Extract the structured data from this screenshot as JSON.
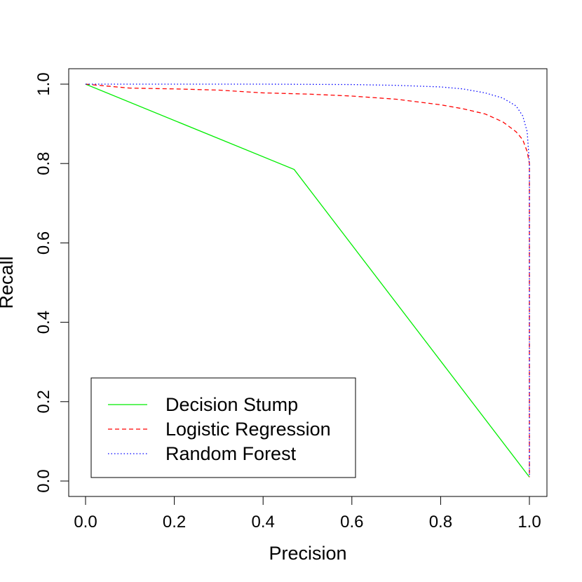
{
  "chart_data": {
    "type": "line",
    "xlabel": "Precision",
    "ylabel": "Recall",
    "xlim": [
      0,
      1
    ],
    "ylim": [
      0,
      1
    ],
    "grid": false,
    "legend_placement": "bottom-left",
    "x_ticks": [
      "0.0",
      "0.2",
      "0.4",
      "0.6",
      "0.8",
      "1.0"
    ],
    "y_ticks": [
      "0.0",
      "0.2",
      "0.4",
      "0.6",
      "0.8",
      "1.0"
    ],
    "series": [
      {
        "name": "Decision Stump",
        "color": "#00ee00",
        "line_style": "solid",
        "x": [
          0.0,
          0.47,
          1.0
        ],
        "y": [
          1.0,
          0.785,
          0.01
        ]
      },
      {
        "name": "Logistic Regression",
        "color": "#ff0000",
        "line_style": "dashed",
        "x": [
          0.0,
          0.1,
          0.2,
          0.3,
          0.4,
          0.5,
          0.6,
          0.7,
          0.8,
          0.85,
          0.9,
          0.94,
          0.97,
          0.985,
          0.995,
          1.0,
          1.0
        ],
        "y": [
          1.0,
          0.99,
          0.988,
          0.985,
          0.978,
          0.975,
          0.97,
          0.962,
          0.948,
          0.938,
          0.925,
          0.905,
          0.88,
          0.86,
          0.83,
          0.8,
          0.01
        ]
      },
      {
        "name": "Random Forest",
        "color": "#0000ff",
        "line_style": "dotted",
        "x": [
          0.0,
          0.2,
          0.4,
          0.6,
          0.7,
          0.8,
          0.85,
          0.9,
          0.94,
          0.97,
          0.985,
          0.995,
          1.0,
          1.0
        ],
        "y": [
          1.0,
          1.0,
          1.0,
          0.999,
          0.997,
          0.993,
          0.988,
          0.978,
          0.965,
          0.945,
          0.92,
          0.88,
          0.8,
          0.01
        ]
      }
    ]
  }
}
